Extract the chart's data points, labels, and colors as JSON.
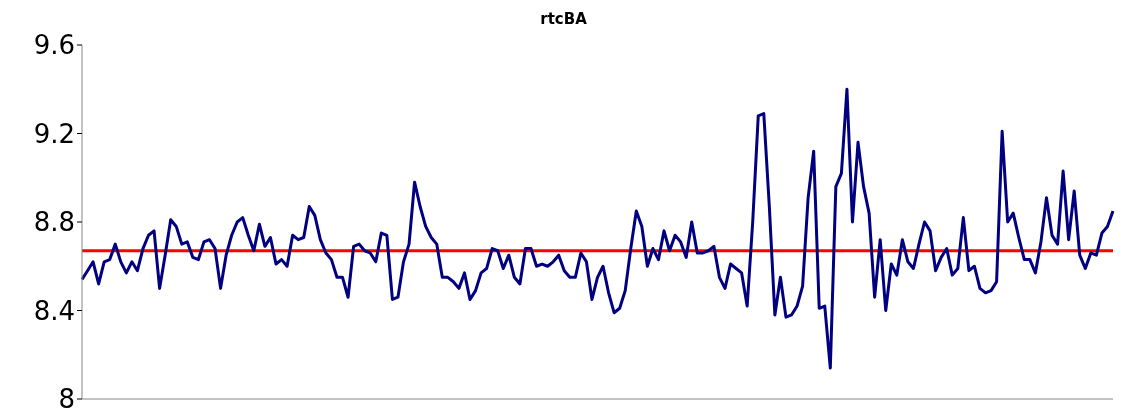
{
  "chart_data": {
    "type": "line",
    "title": "rtcBA",
    "categories": [
      null,
      null,
      null,
      null,
      null,
      null,
      null,
      null,
      null,
      null,
      null,
      null,
      null,
      null,
      null,
      null,
      null,
      null,
      null,
      null,
      null,
      null,
      null,
      null,
      null,
      null,
      null,
      null,
      null,
      null,
      null,
      null,
      null,
      null,
      null,
      null,
      null,
      null,
      null,
      null,
      null,
      null,
      null,
      null,
      null,
      null,
      null,
      null,
      null,
      null,
      null,
      null,
      null,
      null,
      null,
      null,
      null,
      null,
      null,
      null,
      null,
      null,
      null,
      null,
      null,
      null,
      null,
      null,
      null,
      null,
      null,
      null,
      null,
      null,
      null,
      null,
      null,
      null,
      null,
      null,
      null,
      null,
      null,
      null,
      null,
      null,
      null,
      null,
      null,
      null,
      null,
      null,
      null,
      null,
      null,
      null,
      null,
      null,
      null,
      null,
      null,
      null,
      null,
      null,
      null,
      null,
      null,
      null,
      null,
      null,
      null,
      null,
      null,
      null,
      null,
      null,
      null,
      null,
      null,
      null,
      null,
      null,
      null,
      null,
      null,
      null,
      null,
      null,
      null,
      null,
      null,
      null,
      null,
      null,
      null,
      null,
      null,
      null,
      null,
      null,
      null,
      null,
      null,
      null,
      null,
      null,
      null,
      null,
      null,
      null,
      null,
      null,
      null,
      null,
      null,
      null,
      null,
      null,
      null,
      null,
      null,
      null,
      null,
      null,
      null,
      null,
      null,
      null,
      null,
      null,
      null,
      null,
      null,
      null,
      null,
      null,
      null,
      null,
      null,
      null,
      null,
      null,
      null,
      null,
      null,
      null,
      null
    ],
    "series": [
      {
        "color": "#000080",
        "values": [
          8.54,
          8.58,
          8.62,
          8.52,
          8.62,
          8.63,
          8.7,
          8.62,
          8.57,
          8.62,
          8.58,
          8.68,
          8.74,
          8.76,
          8.5,
          8.65,
          8.81,
          8.78,
          8.7,
          8.71,
          8.64,
          8.63,
          8.71,
          8.72,
          8.68,
          8.5,
          8.65,
          8.74,
          8.8,
          8.82,
          8.74,
          8.67,
          8.79,
          8.69,
          8.73,
          8.61,
          8.63,
          8.6,
          8.74,
          8.72,
          8.73,
          8.87,
          8.83,
          8.72,
          8.66,
          8.63,
          8.55,
          8.55,
          8.46,
          8.69,
          8.7,
          8.67,
          8.66,
          8.62,
          8.75,
          8.74,
          8.45,
          8.46,
          8.62,
          8.7,
          8.98,
          8.87,
          8.78,
          8.73,
          8.7,
          8.55,
          8.55,
          8.53,
          8.5,
          8.57,
          8.45,
          8.49,
          8.57,
          8.59,
          8.68,
          8.67,
          8.59,
          8.65,
          8.55,
          8.52,
          8.68,
          8.68,
          8.6,
          8.61,
          8.6,
          8.62,
          8.65,
          8.58,
          8.55,
          8.55,
          8.66,
          8.62,
          8.45,
          8.55,
          8.6,
          8.48,
          8.39,
          8.41,
          8.49,
          8.68,
          8.85,
          8.78,
          8.6,
          8.68,
          8.63,
          8.76,
          8.67,
          8.74,
          8.71,
          8.64,
          8.8,
          8.66,
          8.66,
          8.67,
          8.69,
          8.55,
          8.5,
          8.61,
          8.59,
          8.57,
          8.42,
          8.8,
          9.28,
          9.29,
          8.87,
          8.38,
          8.55,
          8.37,
          8.38,
          8.42,
          8.51,
          8.91,
          9.12,
          8.41,
          8.42,
          8.14,
          8.96,
          9.02,
          9.4,
          8.8,
          9.16,
          8.96,
          8.84,
          8.46,
          8.72,
          8.4,
          8.61,
          8.56,
          8.72,
          8.62,
          8.59,
          8.7,
          8.8,
          8.76,
          8.58,
          8.64,
          8.68,
          8.56,
          8.59,
          8.82,
          8.58,
          8.6,
          8.5,
          8.48,
          8.49,
          8.53,
          9.21,
          8.8,
          8.84,
          8.73,
          8.63,
          8.63,
          8.57,
          8.71,
          8.91,
          8.74,
          8.7,
          9.03,
          8.72,
          8.94,
          8.65,
          8.59,
          8.66,
          8.65,
          8.75,
          8.78,
          8.85
        ]
      }
    ],
    "ylim": [
      8,
      9.6
    ],
    "yticks": [
      8,
      8.4,
      8.8,
      9.2,
      9.6
    ],
    "ref_lines": [
      {
        "axis": "y",
        "value": 8.67,
        "color": "#ff0000"
      }
    ],
    "marker": "none",
    "line_style": "solid"
  }
}
